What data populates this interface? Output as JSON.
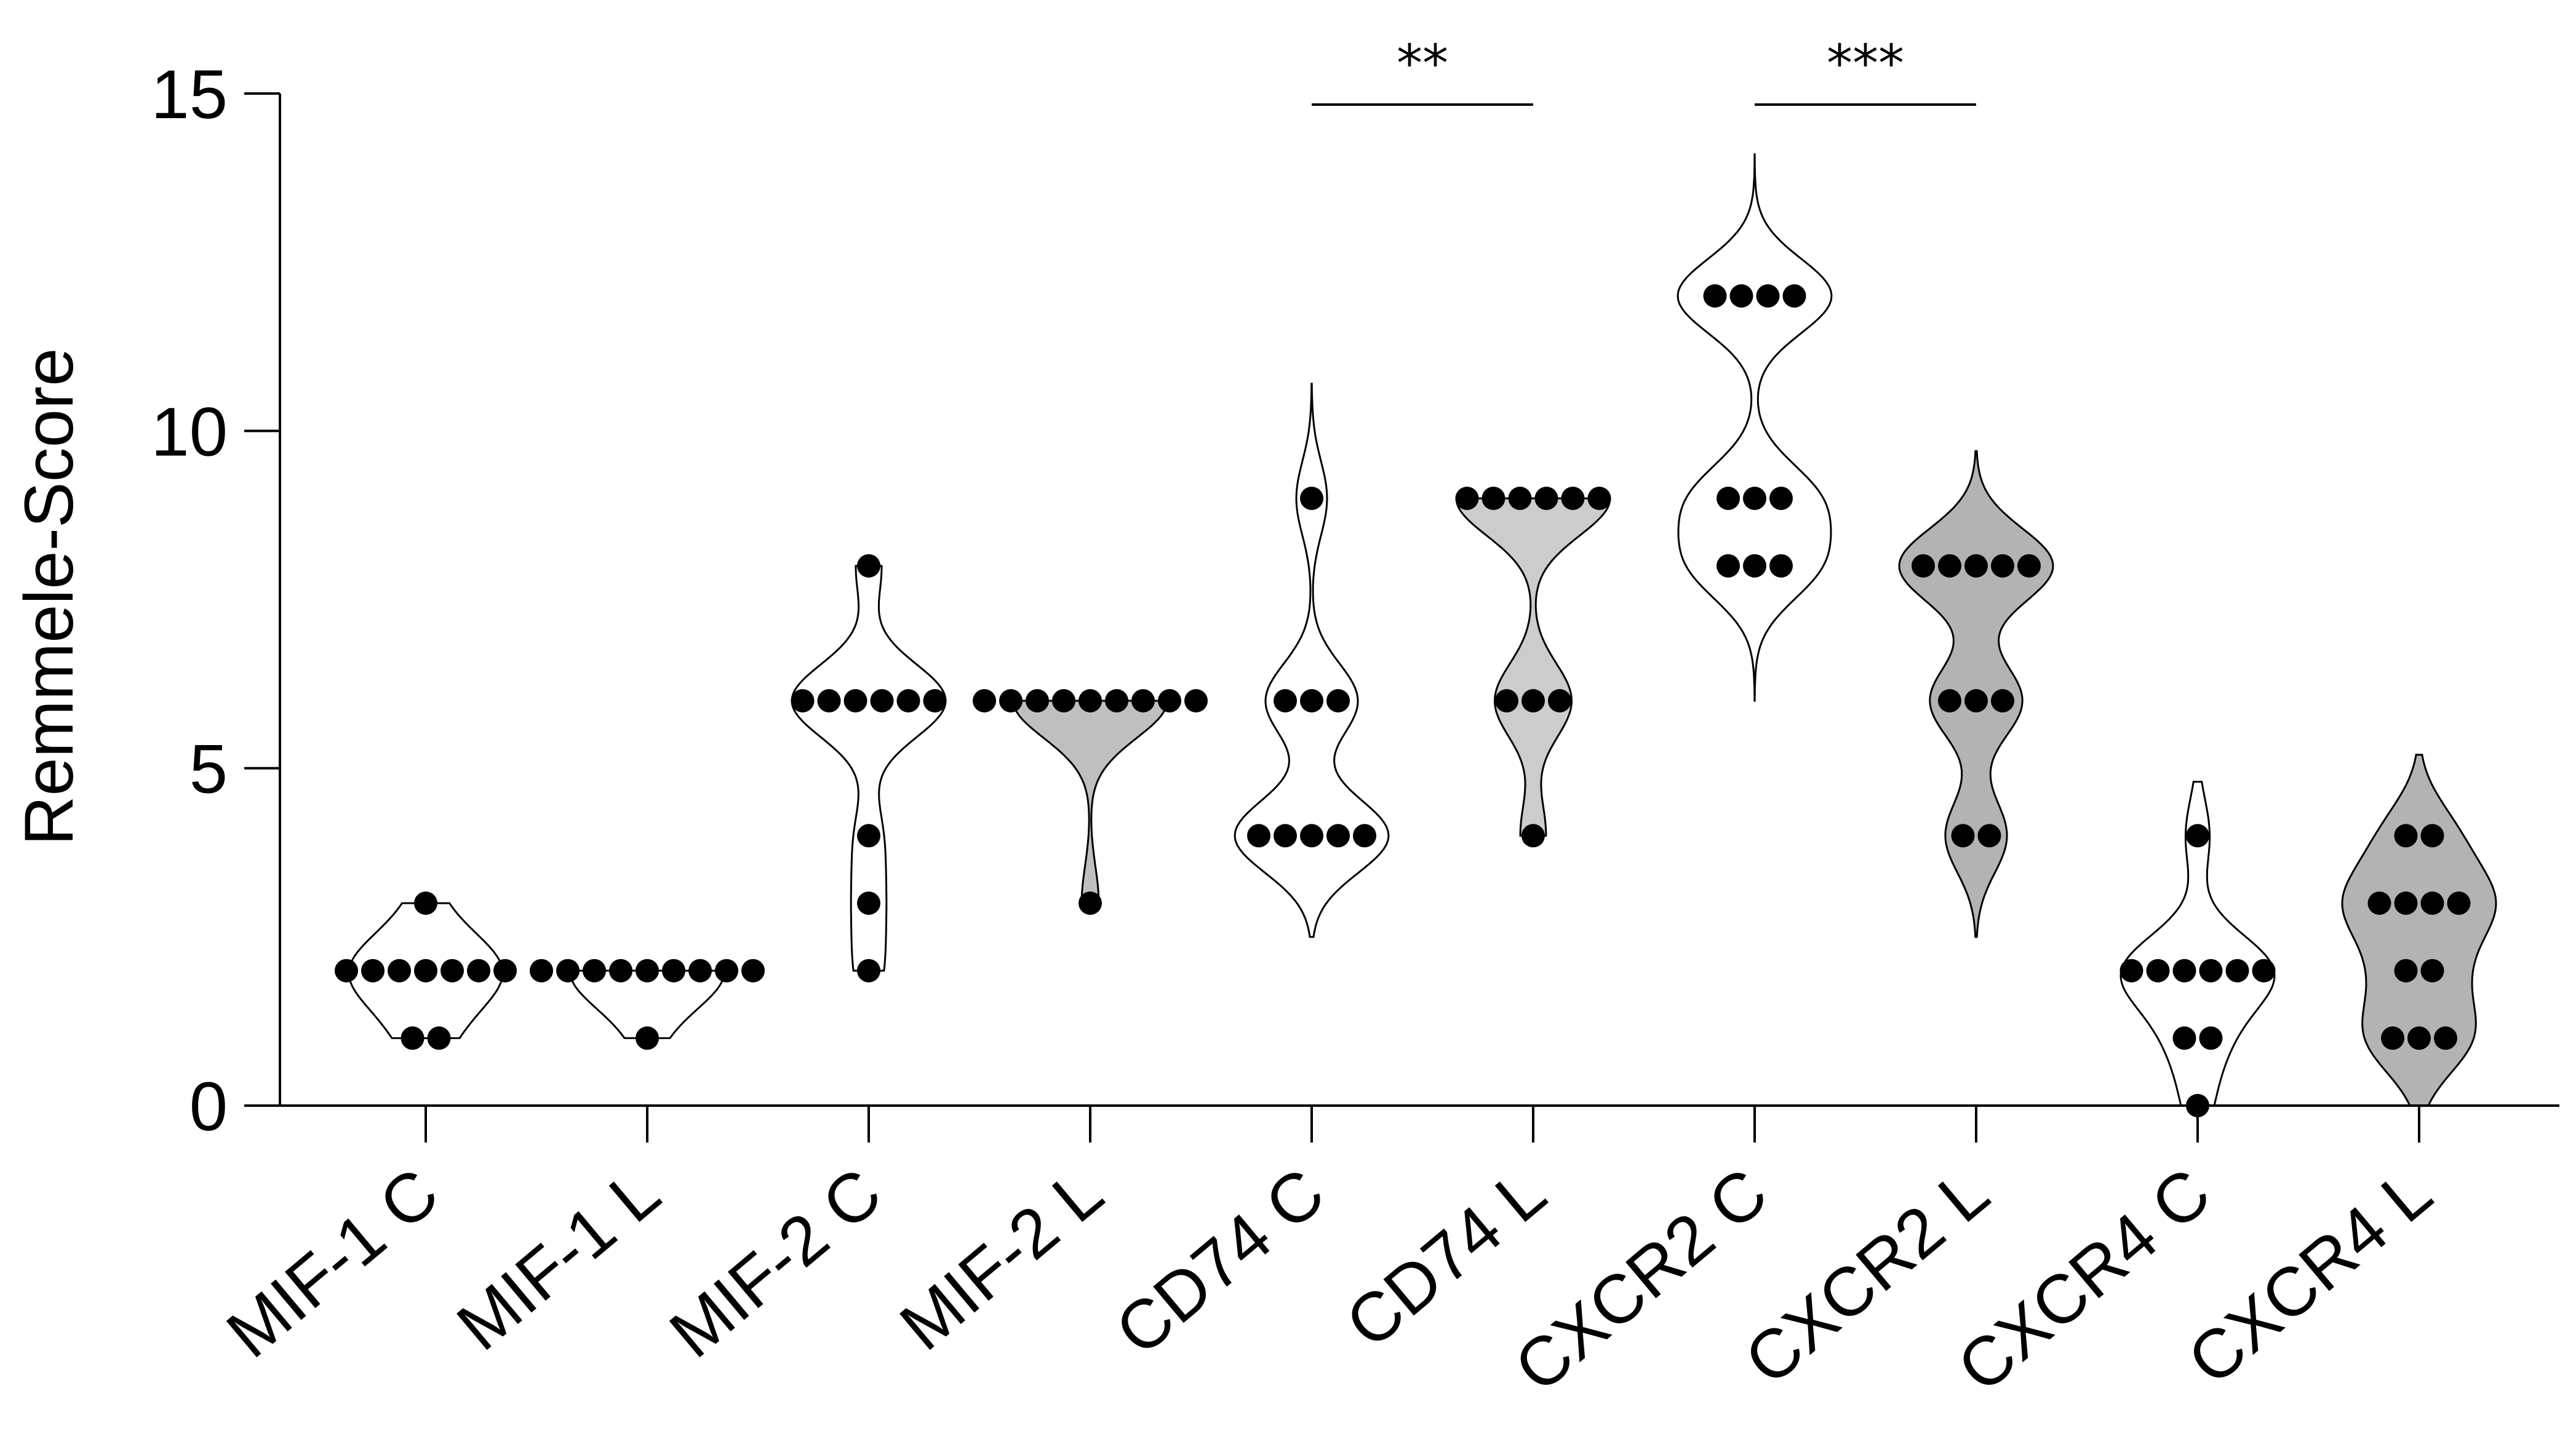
{
  "chart_data": {
    "type": "violin",
    "title": "",
    "xlabel": "",
    "ylabel": "Remmele-Score",
    "ylim": [
      0,
      15
    ],
    "yticks": [
      0,
      5,
      10,
      15
    ],
    "categories": [
      "MIF-1 C",
      "MIF-1 L",
      "MIF-2 C",
      "MIF-2 L",
      "CD74 C",
      "CD74 L",
      "CXCR2 C",
      "CXCR2 L",
      "CXCR4 C",
      "CXCR4 L"
    ],
    "fills": [
      "#ffffff",
      "#ffffff",
      "#ffffff",
      "#bfbfbf",
      "#ffffff",
      "#cccccc",
      "#ffffff",
      "#b3b3b3",
      "#ffffff",
      "#b3b3b3"
    ],
    "series": [
      {
        "name": "MIF-1 C",
        "range": [
          1,
          3
        ],
        "values": [
          3,
          2,
          2,
          2,
          2,
          2,
          2,
          2,
          1,
          1
        ]
      },
      {
        "name": "MIF-1 L",
        "range": [
          1,
          2
        ],
        "values": [
          2,
          2,
          2,
          2,
          2,
          2,
          2,
          2,
          2,
          1
        ]
      },
      {
        "name": "MIF-2 C",
        "range": [
          2,
          8
        ],
        "values": [
          8,
          6,
          6,
          6,
          6,
          6,
          6,
          4,
          3,
          2
        ]
      },
      {
        "name": "MIF-2 L",
        "range": [
          3,
          6
        ],
        "values": [
          6,
          6,
          6,
          6,
          6,
          6,
          6,
          6,
          6,
          3
        ]
      },
      {
        "name": "CD74 C",
        "range": [
          2.5,
          10.7
        ],
        "values": [
          9,
          6,
          6,
          6,
          4,
          4,
          4,
          4,
          4
        ]
      },
      {
        "name": "CD74 L",
        "range": [
          4,
          9
        ],
        "values": [
          9,
          9,
          9,
          9,
          9,
          9,
          6,
          6,
          6,
          4
        ]
      },
      {
        "name": "CXCR2 C",
        "range": [
          6,
          14.1
        ],
        "values": [
          12,
          12,
          12,
          12,
          9,
          9,
          9,
          8,
          8,
          8
        ]
      },
      {
        "name": "CXCR2 L",
        "range": [
          2.5,
          9.7
        ],
        "values": [
          8,
          8,
          8,
          8,
          8,
          6,
          6,
          6,
          4,
          4
        ]
      },
      {
        "name": "CXCR4 C",
        "range": [
          0,
          4.8
        ],
        "values": [
          4,
          2,
          2,
          2,
          2,
          2,
          2,
          1,
          1,
          0
        ]
      },
      {
        "name": "CXCR4 L",
        "range": [
          0,
          5.2
        ],
        "values": [
          4,
          4,
          3,
          3,
          3,
          3,
          2,
          2,
          1,
          1,
          1
        ]
      }
    ],
    "significance": [
      {
        "from": "CD74 C",
        "to": "CD74 L",
        "label": "**"
      },
      {
        "from": "CXCR2 C",
        "to": "CXCR2 L",
        "label": "***"
      }
    ]
  }
}
